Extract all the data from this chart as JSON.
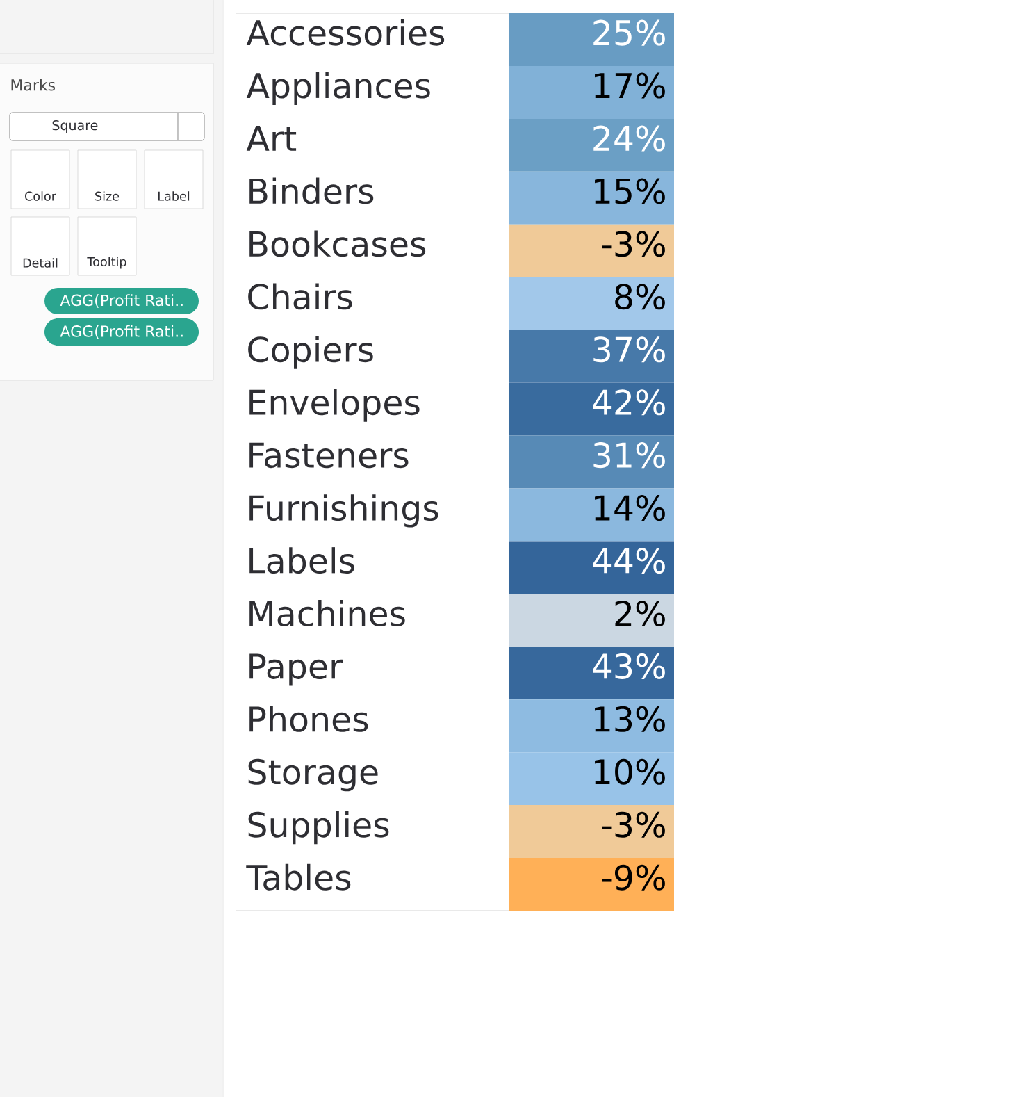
{
  "chart_data": [
    {
      "type": "other",
      "title": "Marks",
      "annotations": [
        "Square",
        "Color",
        "Size",
        "Label",
        "Detail",
        "Tooltip",
        "AGG(Profit Rati..",
        "AGG(Profit Rati.."
      ]
    },
    {
      "type": "heatmap",
      "categories": [
        null
      ],
      "y_categories": [
        "Accessories",
        "Appliances",
        "Art",
        "Binders",
        "Bookcases",
        "Chairs",
        "Copiers",
        "Envelopes",
        "Fasteners",
        "Furnishings",
        "Labels",
        "Machines",
        "Paper",
        "Phones",
        "Storage",
        "Supplies",
        "Tables"
      ],
      "cells": [
        [
          25
        ],
        [
          17
        ],
        [
          24
        ],
        [
          15
        ],
        [
          -3
        ],
        [
          8
        ],
        [
          37
        ],
        [
          42
        ],
        [
          31
        ],
        [
          14
        ],
        [
          44
        ],
        [
          2
        ],
        [
          43
        ],
        [
          13
        ],
        [
          10
        ],
        [
          -3
        ],
        [
          -9
        ]
      ],
      "cell_labels": [
        [
          "25%"
        ],
        [
          "17%"
        ],
        [
          "24%"
        ],
        [
          "15%"
        ],
        [
          "-3%"
        ],
        [
          "8%"
        ],
        [
          "37%"
        ],
        [
          "42%"
        ],
        [
          "31%"
        ],
        [
          "14%"
        ],
        [
          "44%"
        ],
        [
          "2%"
        ],
        [
          "43%"
        ],
        [
          "13%"
        ],
        [
          "10%"
        ],
        [
          "-3%"
        ],
        [
          "-9%"
        ]
      ]
    }
  ]
}
